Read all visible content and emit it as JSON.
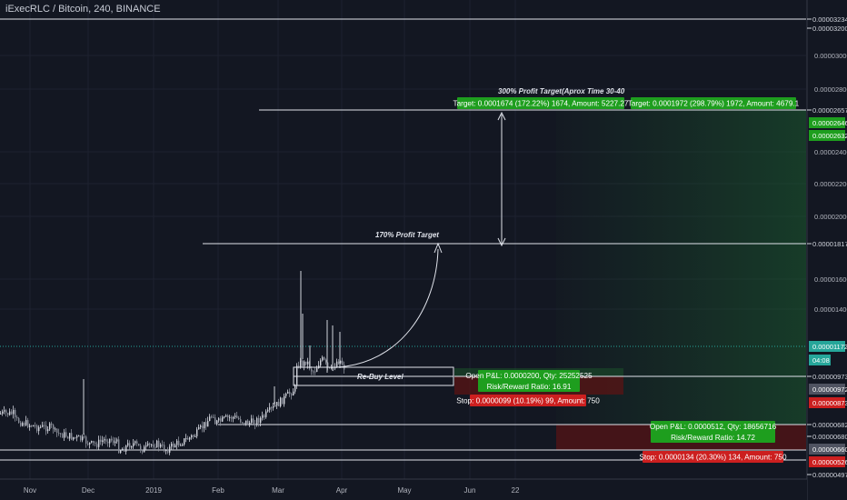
{
  "header": {
    "title": "iExecRLC / Bitcoin, 240, BINANCE"
  },
  "colors": {
    "background": "#131722",
    "grid": "#1e2230",
    "candle_up": "#d1d4dc",
    "candle_down": "#8a8e99",
    "white_line": "#e0e3eb",
    "current_price": "#26a69a",
    "profit_label": "#1e9e1e",
    "stop_label": "#cc1f1f",
    "price_box": "#4f5361"
  },
  "chart_data": {
    "type": "candlestick",
    "title": "iExecRLC / Bitcoin, 240, BINANCE",
    "x_ticks": [
      "Nov",
      "Dec",
      "2019",
      "Feb",
      "Mar",
      "Apr",
      "May",
      "Jun",
      "22"
    ],
    "price_scale_ticks": [
      "0.00003000",
      "0.00002800",
      "0.00002400",
      "0.00002200",
      "0.00002000",
      "0.00001600",
      "0.00001400"
    ],
    "price_scale_labels": [
      {
        "text": "0.00003234",
        "style": "plain"
      },
      {
        "text": "0.00003200",
        "style": "plain"
      },
      {
        "text": "0.00002657",
        "style": "plain"
      },
      {
        "text": "0.00002646",
        "style": "green"
      },
      {
        "text": "0.00002632",
        "style": "green"
      },
      {
        "text": "0.00001817",
        "style": "plain"
      },
      {
        "text": "0.00001172",
        "style": "teal"
      },
      {
        "text": "04:08",
        "style": "teal-small"
      },
      {
        "text": "0.00000973",
        "style": "plain"
      },
      {
        "text": "0.00000972",
        "style": "grey"
      },
      {
        "text": "0.00000873",
        "style": "red"
      },
      {
        "text": "0.00000682",
        "style": "plain"
      },
      {
        "text": "0.00000680",
        "style": "plain"
      },
      {
        "text": "0.00000660",
        "style": "grey"
      },
      {
        "text": "0.00000526",
        "style": "red"
      },
      {
        "text": "0.00000497",
        "style": "plain"
      }
    ],
    "annotations": {
      "profit_target_300": "300% Profit Target(Aprox Time 30-40",
      "profit_target_170": "170% Profit Target",
      "rebuy_level": "Re-Buy Level"
    },
    "positions": [
      {
        "target_label": "Target: 0.0001674 (172.22%) 1674, Amount: 5227.27",
        "pnl_label": "Open P&L: 0.0000200, Qty: 25252525",
        "risk_reward_label": "Risk/Reward Ratio: 16.91",
        "stop_label": "Stop: 0.0000099 (10.19%) 99, Amount: 750"
      },
      {
        "target_label": "Target: 0.0001972 (298.79%) 1972, Amount: 4679.1",
        "pnl_label": "Open P&L: 0.0000512, Qty: 18656716",
        "risk_reward_label": "Risk/Reward Ratio: 14.72",
        "stop_label": "Stop: 0.0000134 (20.30%) 134, Amount: 750"
      }
    ],
    "horizontal_levels": [
      "0.00003234",
      "0.00002657",
      "0.00001817",
      "0.00000973",
      "0.00000682",
      "0.00000660",
      "0.00000526"
    ],
    "grid": true
  }
}
